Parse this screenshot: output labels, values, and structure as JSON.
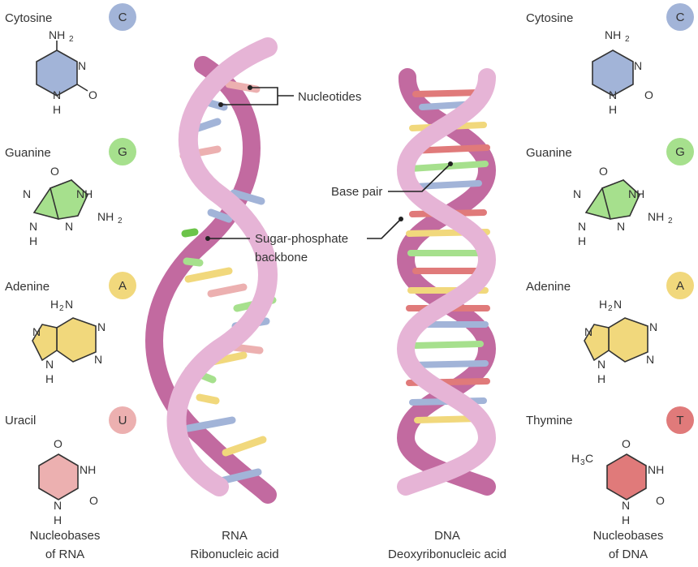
{
  "colors": {
    "cytosine": "#a2b4d8",
    "guanine": "#a6e08d",
    "adenine": "#f1d87c",
    "uracil": "#ecb0b0",
    "thymine": "#e07a7a",
    "backbone_light": "#e6b4d6",
    "backbone_dark": "#c26aa0"
  },
  "rna_bases": [
    {
      "name": "Cytosine",
      "letter": "C"
    },
    {
      "name": "Guanine",
      "letter": "G"
    },
    {
      "name": "Adenine",
      "letter": "A"
    },
    {
      "name": "Uracil",
      "letter": "U"
    }
  ],
  "dna_bases": [
    {
      "name": "Cytosine",
      "letter": "C"
    },
    {
      "name": "Guanine",
      "letter": "G"
    },
    {
      "name": "Adenine",
      "letter": "A"
    },
    {
      "name": "Thymine",
      "letter": "T"
    }
  ],
  "atoms": {
    "nh2": "NH",
    "h2n": "H",
    "n": "N",
    "nh": "NH",
    "h": "H",
    "o": "O",
    "two": "2",
    "ch3": "H",
    "c": "C",
    "three": "3"
  },
  "callouts": {
    "nucleotides": "Nucleotides",
    "base_pair": "Base pair",
    "backbone_line1": "Sugar-phosphate",
    "backbone_line2": "backbone"
  },
  "captions": {
    "left_line1": "Nucleobases",
    "left_line2": "of RNA",
    "rna_line1": "RNA",
    "rna_line2": "Ribonucleic acid",
    "dna_line1": "DNA",
    "dna_line2": "Deoxyribonucleic acid",
    "right_line1": "Nucleobases",
    "right_line2": "of DNA"
  }
}
